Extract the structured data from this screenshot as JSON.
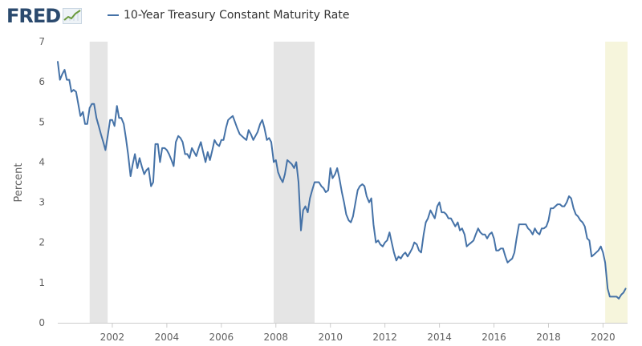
{
  "header": {
    "logo_text": "FRED",
    "logo_icon": "line-chart-icon",
    "legend_label": "10-Year Treasury Constant Maturity Rate"
  },
  "colors": {
    "series": "#4572a7",
    "recession": "#e5e5e5",
    "covid_shade": "#f6f5dc",
    "axis": "#cccccc",
    "logo": "#2b4a6e"
  },
  "chart_data": {
    "type": "line",
    "title": "10-Year Treasury Constant Maturity Rate",
    "ylabel": "Percent",
    "xlabel": "",
    "xlim": [
      2000.0,
      2020.9
    ],
    "ylim": [
      0,
      7
    ],
    "y_ticks": [
      0,
      1,
      2,
      3,
      4,
      5,
      6,
      7
    ],
    "x_ticks": [
      2002,
      2004,
      2006,
      2008,
      2010,
      2012,
      2014,
      2016,
      2018,
      2020
    ],
    "grid": false,
    "shaded_periods": [
      {
        "type": "recession",
        "start": 2001.17,
        "end": 2001.83
      },
      {
        "type": "recession",
        "start": 2007.92,
        "end": 2009.42
      },
      {
        "type": "highlight",
        "start": 2020.08,
        "end": 2020.9
      }
    ],
    "series": [
      {
        "name": "10-Year Treasury Constant Maturity Rate",
        "x": [
          2000.0,
          2000.08,
          2000.17,
          2000.25,
          2000.33,
          2000.42,
          2000.5,
          2000.58,
          2000.67,
          2000.75,
          2000.83,
          2000.92,
          2001.0,
          2001.08,
          2001.17,
          2001.25,
          2001.33,
          2001.42,
          2001.5,
          2001.58,
          2001.67,
          2001.75,
          2001.83,
          2001.92,
          2002.0,
          2002.08,
          2002.17,
          2002.25,
          2002.33,
          2002.42,
          2002.5,
          2002.58,
          2002.67,
          2002.75,
          2002.83,
          2002.92,
          2003.0,
          2003.08,
          2003.17,
          2003.25,
          2003.33,
          2003.42,
          2003.5,
          2003.58,
          2003.67,
          2003.75,
          2003.83,
          2003.92,
          2004.0,
          2004.08,
          2004.17,
          2004.25,
          2004.33,
          2004.42,
          2004.5,
          2004.58,
          2004.67,
          2004.75,
          2004.83,
          2004.92,
          2005.0,
          2005.08,
          2005.17,
          2005.25,
          2005.33,
          2005.42,
          2005.5,
          2005.58,
          2005.67,
          2005.75,
          2005.83,
          2005.92,
          2006.0,
          2006.08,
          2006.17,
          2006.25,
          2006.33,
          2006.42,
          2006.5,
          2006.58,
          2006.67,
          2006.75,
          2006.83,
          2006.92,
          2007.0,
          2007.08,
          2007.17,
          2007.25,
          2007.33,
          2007.42,
          2007.5,
          2007.58,
          2007.67,
          2007.75,
          2007.83,
          2007.92,
          2008.0,
          2008.08,
          2008.17,
          2008.25,
          2008.33,
          2008.42,
          2008.5,
          2008.58,
          2008.67,
          2008.75,
          2008.83,
          2008.92,
          2009.0,
          2009.08,
          2009.17,
          2009.25,
          2009.33,
          2009.42,
          2009.5,
          2009.58,
          2009.67,
          2009.75,
          2009.83,
          2009.92,
          2010.0,
          2010.08,
          2010.17,
          2010.25,
          2010.33,
          2010.42,
          2010.5,
          2010.58,
          2010.67,
          2010.75,
          2010.83,
          2010.92,
          2011.0,
          2011.08,
          2011.17,
          2011.25,
          2011.33,
          2011.42,
          2011.5,
          2011.58,
          2011.67,
          2011.75,
          2011.83,
          2011.92,
          2012.0,
          2012.08,
          2012.17,
          2012.25,
          2012.33,
          2012.42,
          2012.5,
          2012.58,
          2012.67,
          2012.75,
          2012.83,
          2012.92,
          2013.0,
          2013.08,
          2013.17,
          2013.25,
          2013.33,
          2013.42,
          2013.5,
          2013.58,
          2013.67,
          2013.75,
          2013.83,
          2013.92,
          2014.0,
          2014.08,
          2014.17,
          2014.25,
          2014.33,
          2014.42,
          2014.5,
          2014.58,
          2014.67,
          2014.75,
          2014.83,
          2014.92,
          2015.0,
          2015.08,
          2015.17,
          2015.25,
          2015.33,
          2015.42,
          2015.5,
          2015.58,
          2015.67,
          2015.75,
          2015.83,
          2015.92,
          2016.0,
          2016.08,
          2016.17,
          2016.25,
          2016.33,
          2016.42,
          2016.5,
          2016.58,
          2016.67,
          2016.75,
          2016.83,
          2016.92,
          2017.0,
          2017.08,
          2017.17,
          2017.25,
          2017.33,
          2017.42,
          2017.5,
          2017.58,
          2017.67,
          2017.75,
          2017.83,
          2017.92,
          2018.0,
          2018.08,
          2018.17,
          2018.25,
          2018.33,
          2018.42,
          2018.5,
          2018.58,
          2018.67,
          2018.75,
          2018.83,
          2018.92,
          2019.0,
          2019.08,
          2019.17,
          2019.25,
          2019.33,
          2019.42,
          2019.5,
          2019.58,
          2019.67,
          2019.75,
          2019.83,
          2019.92,
          2020.0,
          2020.08,
          2020.17,
          2020.25,
          2020.33,
          2020.42,
          2020.5,
          2020.58,
          2020.67,
          2020.75,
          2020.83
        ],
        "y": [
          6.5,
          6.05,
          6.2,
          6.3,
          6.05,
          6.05,
          5.75,
          5.8,
          5.75,
          5.45,
          5.15,
          5.25,
          4.95,
          4.95,
          5.35,
          5.45,
          5.45,
          5.1,
          4.9,
          4.7,
          4.5,
          4.3,
          4.65,
          5.05,
          5.05,
          4.9,
          5.4,
          5.1,
          5.1,
          4.95,
          4.6,
          4.2,
          3.65,
          3.95,
          4.2,
          3.85,
          4.1,
          3.9,
          3.7,
          3.8,
          3.85,
          3.4,
          3.5,
          4.45,
          4.45,
          4.0,
          4.35,
          4.35,
          4.3,
          4.2,
          4.05,
          3.9,
          4.5,
          4.65,
          4.6,
          4.5,
          4.2,
          4.2,
          4.1,
          4.35,
          4.25,
          4.15,
          4.35,
          4.5,
          4.25,
          4.0,
          4.25,
          4.05,
          4.3,
          4.55,
          4.45,
          4.4,
          4.55,
          4.55,
          4.85,
          5.05,
          5.1,
          5.15,
          5.0,
          4.85,
          4.7,
          4.65,
          4.6,
          4.55,
          4.8,
          4.7,
          4.55,
          4.65,
          4.75,
          4.95,
          5.05,
          4.85,
          4.55,
          4.6,
          4.5,
          4.0,
          4.05,
          3.75,
          3.6,
          3.5,
          3.7,
          4.05,
          4.0,
          3.95,
          3.85,
          4.0,
          3.5,
          2.3,
          2.8,
          2.9,
          2.75,
          3.1,
          3.3,
          3.5,
          3.5,
          3.5,
          3.4,
          3.35,
          3.25,
          3.3,
          3.85,
          3.6,
          3.7,
          3.85,
          3.6,
          3.25,
          3.0,
          2.7,
          2.55,
          2.5,
          2.65,
          3.0,
          3.3,
          3.4,
          3.45,
          3.4,
          3.15,
          3.0,
          3.1,
          2.45,
          2.0,
          2.05,
          1.95,
          1.9,
          2.0,
          2.05,
          2.25,
          2.0,
          1.75,
          1.55,
          1.65,
          1.6,
          1.7,
          1.75,
          1.65,
          1.75,
          1.85,
          2.0,
          1.95,
          1.8,
          1.75,
          2.2,
          2.5,
          2.6,
          2.8,
          2.7,
          2.6,
          2.9,
          3.0,
          2.75,
          2.75,
          2.7,
          2.6,
          2.6,
          2.5,
          2.4,
          2.5,
          2.3,
          2.35,
          2.2,
          1.9,
          1.95,
          2.0,
          2.05,
          2.2,
          2.35,
          2.25,
          2.2,
          2.2,
          2.1,
          2.2,
          2.25,
          2.1,
          1.8,
          1.8,
          1.85,
          1.85,
          1.65,
          1.5,
          1.55,
          1.6,
          1.75,
          2.1,
          2.45,
          2.45,
          2.45,
          2.45,
          2.35,
          2.3,
          2.2,
          2.35,
          2.25,
          2.2,
          2.35,
          2.35,
          2.4,
          2.55,
          2.85,
          2.85,
          2.9,
          2.95,
          2.95,
          2.9,
          2.9,
          3.0,
          3.15,
          3.1,
          2.85,
          2.7,
          2.65,
          2.55,
          2.5,
          2.4,
          2.1,
          2.05,
          1.65,
          1.7,
          1.75,
          1.8,
          1.9,
          1.75,
          1.5,
          0.85,
          0.65,
          0.65,
          0.65,
          0.65,
          0.6,
          0.7,
          0.75,
          0.85
        ]
      }
    ]
  }
}
